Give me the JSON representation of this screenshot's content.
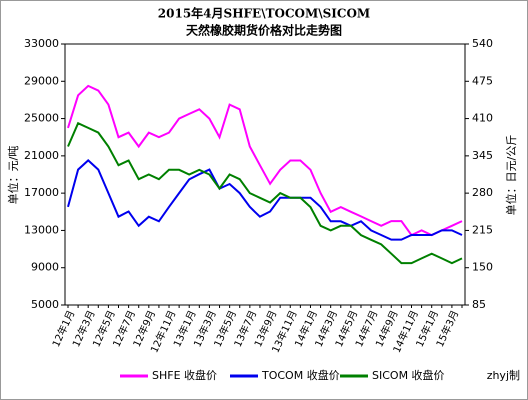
{
  "chart_data": {
    "type": "line",
    "title": "2015年4月SHFE\\TOCOM\\SICOM",
    "subtitle": "天然橡胶期货价格对比走势图",
    "ylabel": "单位：元/吨",
    "y2label": "单位：日元/公斤",
    "source": "zhyj制",
    "categories": [
      "12年1月",
      null,
      "12年3月",
      null,
      "12年5月",
      null,
      "12年7月",
      null,
      "12年9月",
      null,
      "12年11月",
      null,
      "13年1月",
      null,
      "13年3月",
      null,
      "13年5月",
      null,
      "13年7月",
      null,
      "13年9月",
      null,
      "13年11月",
      null,
      "14年1月",
      null,
      "14年3月",
      null,
      "14年5月",
      null,
      "14年7月",
      null,
      "14年9月",
      null,
      "14年11月",
      null,
      "15年1月",
      null,
      "15年3月",
      null
    ],
    "ylim": [
      5000,
      33000
    ],
    "yticks": [
      5000,
      9000,
      13000,
      17000,
      21000,
      25000,
      29000,
      33000
    ],
    "y2lim": [
      85,
      540
    ],
    "y2ticks": [
      85,
      150,
      215,
      280,
      345,
      410,
      475,
      540
    ],
    "grid": false,
    "series": [
      {
        "name": "SHFE 收盘价",
        "color": "#ff00ff",
        "values": [
          24000,
          27500,
          28500,
          28000,
          26500,
          23000,
          23500,
          22000,
          23500,
          23000,
          23500,
          25000,
          25500,
          26000,
          25000,
          23000,
          26500,
          26000,
          22000,
          20000,
          18000,
          19500,
          20500,
          20500,
          19500,
          17000,
          15000,
          15500,
          15000,
          14500,
          14000,
          13500,
          14000,
          14000,
          12500,
          13000,
          12500,
          13000,
          13500,
          14000
        ]
      },
      {
        "name": "TOCOM 收盘价",
        "color": "#0000ee",
        "axis": "y2",
        "values": [
          256,
          321,
          337,
          321,
          280,
          239,
          248,
          223,
          239,
          231,
          256,
          280,
          304,
          313,
          321,
          288,
          296,
          280,
          256,
          239,
          248,
          272,
          272,
          272,
          272,
          256,
          231,
          231,
          223,
          231,
          215,
          207,
          199,
          199,
          207,
          207,
          207,
          215,
          215,
          207
        ]
      },
      {
        "name": "SICOM 收盘价",
        "color": "#008000",
        "values": [
          22000,
          24500,
          24000,
          23500,
          22000,
          20000,
          20500,
          18500,
          19000,
          18500,
          19500,
          19500,
          19000,
          19500,
          19000,
          17500,
          19000,
          18500,
          17000,
          16500,
          16000,
          17000,
          16500,
          16500,
          15500,
          13500,
          13000,
          13500,
          13500,
          12500,
          12000,
          11500,
          10500,
          9500,
          9500,
          10000,
          10500,
          10000,
          9500,
          10000
        ]
      }
    ]
  }
}
